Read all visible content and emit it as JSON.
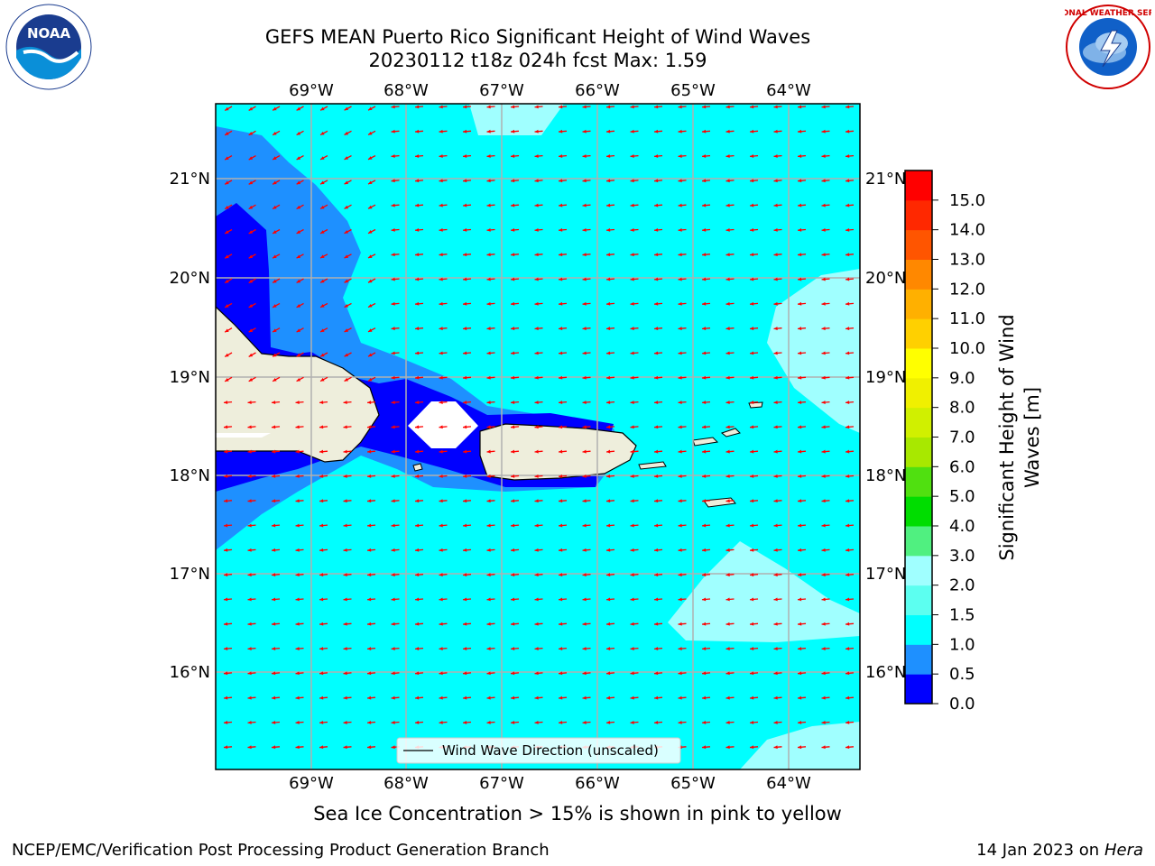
{
  "header": {
    "title_line1": "GEFS MEAN Puerto Rico Significant Height of Wind Waves",
    "title_line2": "20230112 t18z 024h fcst   Max: 1.59"
  },
  "logos": {
    "left_name": "NOAA",
    "left_ring_text": "NATIONAL OCEANIC AND ATMOSPHERIC ADMINISTRATION · U.S. DEPARTMENT OF COMMERCE",
    "right_ring_text": "NATIONAL WEATHER SERVICE"
  },
  "map": {
    "lon_labels": [
      "69°W",
      "68°W",
      "67°W",
      "66°W",
      "65°W",
      "64°W"
    ],
    "lat_labels": [
      "21°N",
      "20°N",
      "19°N",
      "18°N",
      "17°N",
      "16°N"
    ],
    "legend_label": "Wind Wave Direction (unscaled)",
    "colors": {
      "ocean": "#00ffff",
      "mid_blue": "#1e90ff",
      "deep_blue": "#0000ff",
      "pale": "#a0ffff",
      "land": "#eeeedc",
      "arrow": "#ff0000"
    }
  },
  "colorbar": {
    "label": "Significant Height of Wind Waves [m]",
    "label_line1": "Significant Height of Wind",
    "label_line2": "Waves [m]",
    "ticks": [
      "0.0",
      "0.5",
      "1.0",
      "1.5",
      "2.0",
      "3.0",
      "4.0",
      "5.0",
      "6.0",
      "7.0",
      "8.0",
      "9.0",
      "10.0",
      "11.0",
      "12.0",
      "13.0",
      "14.0",
      "15.0"
    ],
    "colors": [
      "#0000ff",
      "#1e90ff",
      "#00ffff",
      "#5cfff0",
      "#a0ffff",
      "#50f080",
      "#00dd00",
      "#50e010",
      "#a8e800",
      "#d0f000",
      "#f0f000",
      "#ffff00",
      "#ffd000",
      "#ffb000",
      "#ff8800",
      "#ff5500",
      "#ff2800",
      "#ff0000"
    ]
  },
  "caption": "Sea Ice Concentration > 15% is shown in pink to yellow",
  "footer": {
    "left": "NCEP/EMC/Verification Post Processing Product Generation Branch",
    "right_prefix": "14 Jan 2023 on ",
    "right_host": "Hera"
  }
}
